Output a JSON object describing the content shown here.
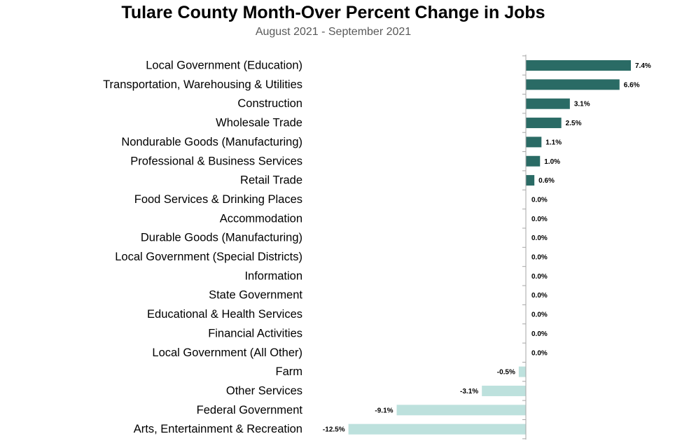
{
  "chart_data": {
    "type": "bar",
    "orientation": "horizontal",
    "title": "Tulare County Month-Over Percent Change in Jobs",
    "subtitle": "August 2021 - September 2021",
    "xlabel": "",
    "ylabel": "",
    "xlim": [
      -12.5,
      7.4
    ],
    "grid": false,
    "legend": "none",
    "categories": [
      "Local Government (Education)",
      "Transportation, Warehousing & Utilities",
      "Construction",
      "Wholesale Trade",
      "Nondurable Goods (Manufacturing)",
      "Professional & Business Services",
      "Retail Trade",
      "Food Services & Drinking Places",
      "Accommodation",
      "Durable Goods (Manufacturing)",
      "Local Government (Special Districts)",
      "Information",
      "State Government",
      "Educational & Health Services",
      "Financial Activities",
      "Local Government (All Other)",
      "Farm",
      "Other Services",
      "Federal Government",
      "Arts, Entertainment & Recreation"
    ],
    "values": [
      7.4,
      6.6,
      3.1,
      2.5,
      1.1,
      1.0,
      0.6,
      0.0,
      0.0,
      0.0,
      0.0,
      0.0,
      0.0,
      0.0,
      0.0,
      0.0,
      -0.5,
      -3.1,
      -9.1,
      -12.5
    ],
    "data_labels": [
      "7.4%",
      "6.6%",
      "3.1%",
      "2.5%",
      "1.1%",
      "1.0%",
      "0.6%",
      "0.0%",
      "0.0%",
      "0.0%",
      "0.0%",
      "0.0%",
      "0.0%",
      "0.0%",
      "0.0%",
      "0.0%",
      "-0.5%",
      "-3.1%",
      "-9.1%",
      "-12.5%"
    ],
    "colors": {
      "positive": "#2a6b65",
      "negative": "#bde1dd",
      "axis": "#a6a6a6"
    }
  }
}
